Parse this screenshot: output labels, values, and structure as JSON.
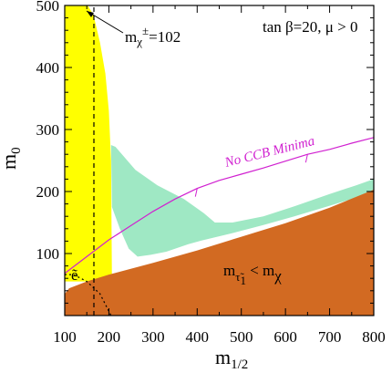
{
  "chart_data": {
    "type": "area",
    "title": "",
    "xlabel": {
      "base": "m",
      "sub": "1/2"
    },
    "ylabel": {
      "base": "m",
      "sub": "0"
    },
    "xlim": [
      100,
      800
    ],
    "ylim": [
      0,
      500
    ],
    "xticks": [
      100,
      200,
      300,
      400,
      500,
      600,
      700,
      800
    ],
    "yticks": [
      100,
      200,
      300,
      400,
      500
    ],
    "grid": false,
    "legend": "none",
    "annotations": {
      "params": "tan  β=20, μ > 0",
      "chargino": {
        "m": "m",
        "chi": "χ",
        "sup": "±",
        "value": "=102"
      },
      "ccb": "No CCB Minima",
      "selectron": "ẽ",
      "stau": {
        "m": "m",
        "sub": "τ̃",
        "subsub": "1",
        "lt": " < m",
        "chi": "χ"
      }
    },
    "regions": [
      {
        "name": "chargino-excluded",
        "color": "#ffff00",
        "polygon": [
          [
            100,
            500
          ],
          [
            152,
            500
          ],
          [
            165,
            485
          ],
          [
            180,
            440
          ],
          [
            192,
            390
          ],
          [
            200,
            330
          ],
          [
            205,
            250
          ],
          [
            207,
            55
          ],
          [
            100,
            55
          ]
        ]
      },
      {
        "name": "cosmology-preferred",
        "color": "#9fe8c4",
        "polygon": [
          [
            205,
            275
          ],
          [
            215,
            272
          ],
          [
            260,
            235
          ],
          [
            310,
            210
          ],
          [
            370,
            188
          ],
          [
            415,
            165
          ],
          [
            440,
            150
          ],
          [
            480,
            150
          ],
          [
            550,
            160
          ],
          [
            620,
            176
          ],
          [
            700,
            196
          ],
          [
            760,
            210
          ],
          [
            800,
            220
          ],
          [
            800,
            200
          ],
          [
            760,
            190
          ],
          [
            700,
            177
          ],
          [
            620,
            160
          ],
          [
            550,
            146
          ],
          [
            480,
            133
          ],
          [
            440,
            126
          ],
          [
            410,
            121
          ],
          [
            380,
            115
          ],
          [
            330,
            103
          ],
          [
            295,
            98
          ],
          [
            265,
            95
          ],
          [
            245,
            108
          ],
          [
            225,
            140
          ],
          [
            207,
            175
          ]
        ]
      },
      {
        "name": "stau-lsp",
        "color": "#d26a22",
        "polygon": [
          [
            100,
            0
          ],
          [
            100,
            35
          ],
          [
            110,
            44
          ],
          [
            150,
            55
          ],
          [
            200,
            66
          ],
          [
            300,
            85
          ],
          [
            400,
            105
          ],
          [
            500,
            127
          ],
          [
            600,
            149
          ],
          [
            700,
            174
          ],
          [
            800,
            203
          ],
          [
            800,
            0
          ]
        ]
      }
    ],
    "lines": [
      {
        "name": "chargino-102",
        "style": "dashed",
        "color": "#000000",
        "points": [
          [
            166,
            0
          ],
          [
            166,
            500
          ]
        ]
      },
      {
        "name": "no-ccb-boundary",
        "style": "solid",
        "color": "#d020d0",
        "points": [
          [
            100,
            68
          ],
          [
            150,
            95
          ],
          [
            200,
            122
          ],
          [
            250,
            145
          ],
          [
            300,
            168
          ],
          [
            350,
            188
          ],
          [
            400,
            205
          ],
          [
            450,
            218
          ],
          [
            500,
            228
          ],
          [
            550,
            238
          ],
          [
            600,
            249
          ],
          [
            650,
            260
          ],
          [
            700,
            268
          ],
          [
            750,
            278
          ],
          [
            800,
            287
          ]
        ]
      },
      {
        "name": "selectron-lsp",
        "style": "dotted",
        "color": "#000000",
        "points": [
          [
            100,
            66
          ],
          [
            120,
            66
          ],
          [
            150,
            55
          ],
          [
            180,
            35
          ],
          [
            205,
            0
          ]
        ]
      }
    ],
    "ccb_ticks": [
      [
        400,
        205
      ],
      [
        650,
        260
      ]
    ]
  }
}
